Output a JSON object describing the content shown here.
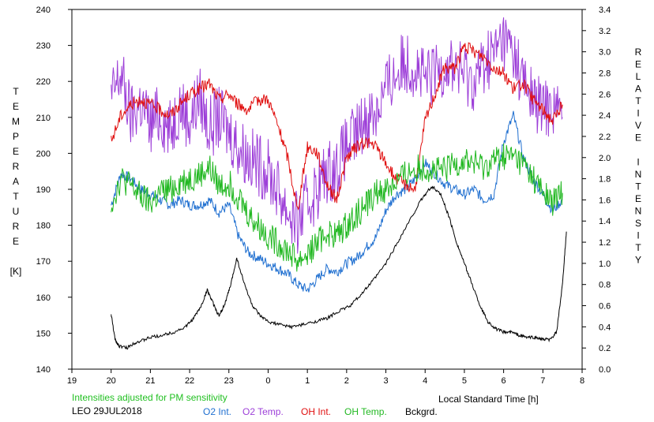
{
  "chart_data": {
    "type": "line",
    "title": "",
    "xlabel": "Local Standard Time [h]",
    "ylabel_left": "TEMPERATURE [K]",
    "ylabel_right": "RELATIVE INTENSITY",
    "ylabel_left_letters": [
      "T",
      "E",
      "M",
      "P",
      "E",
      "R",
      "A",
      "T",
      "U",
      "R",
      "E",
      "",
      "[K]"
    ],
    "ylabel_right_letters": [
      "R",
      "E",
      "L",
      "A",
      "T",
      "I",
      "V",
      "E",
      "",
      "I",
      "N",
      "T",
      "E",
      "N",
      "S",
      "I",
      "T",
      "Y"
    ],
    "x_ticks": [
      "19",
      "20",
      "21",
      "22",
      "23",
      "0",
      "1",
      "2",
      "3",
      "4",
      "5",
      "6",
      "7",
      "8"
    ],
    "xlim": [
      19,
      32
    ],
    "ylim_left": [
      140,
      240
    ],
    "ylim_right": [
      0.0,
      3.4
    ],
    "y_left_ticks": [
      140,
      150,
      160,
      170,
      180,
      190,
      200,
      210,
      220,
      230,
      240
    ],
    "y_right_ticks": [
      "0.0",
      "0.2",
      "0.4",
      "0.6",
      "0.8",
      "1.0",
      "1.2",
      "1.4",
      "1.6",
      "1.8",
      "2.0",
      "2.2",
      "2.4",
      "2.6",
      "2.8",
      "3.0",
      "3.2",
      "3.4"
    ],
    "grid": false,
    "legend_position": "bottom",
    "series": [
      {
        "name": "O2 Int.",
        "axis": "right",
        "color": "#1f6fd0",
        "x": [
          20.0,
          20.25,
          20.5,
          20.75,
          21.0,
          21.25,
          21.5,
          21.75,
          22.0,
          22.25,
          22.5,
          22.75,
          23.0,
          23.25,
          23.5,
          23.75,
          24.0,
          24.25,
          24.5,
          24.75,
          25.0,
          25.25,
          25.5,
          25.75,
          26.0,
          26.25,
          26.5,
          26.75,
          27.0,
          27.25,
          27.5,
          27.75,
          28.0,
          28.25,
          28.5,
          28.75,
          29.0,
          29.25,
          29.5,
          29.75,
          30.0,
          30.25,
          30.5,
          30.75,
          31.0,
          31.25,
          31.5
        ],
        "y": [
          1.55,
          1.85,
          1.8,
          1.7,
          1.65,
          1.6,
          1.55,
          1.6,
          1.55,
          1.55,
          1.6,
          1.48,
          1.55,
          1.25,
          1.1,
          1.05,
          1.0,
          0.95,
          0.9,
          0.8,
          0.75,
          0.85,
          0.95,
          0.92,
          1.0,
          1.05,
          1.15,
          1.25,
          1.5,
          1.65,
          1.7,
          1.8,
          1.95,
          1.85,
          1.75,
          1.7,
          1.65,
          1.7,
          1.6,
          1.65,
          2.15,
          2.4,
          2.0,
          1.8,
          1.65,
          1.5,
          1.6
        ]
      },
      {
        "name": "O2 Temp.",
        "axis": "left",
        "color": "#9d3fd8",
        "x": [
          20.0,
          20.25,
          20.5,
          20.75,
          21.0,
          21.25,
          21.5,
          21.75,
          22.0,
          22.25,
          22.5,
          22.75,
          23.0,
          23.25,
          23.5,
          23.75,
          24.0,
          24.25,
          24.5,
          24.75,
          25.0,
          25.25,
          25.5,
          25.75,
          26.0,
          26.25,
          26.5,
          26.75,
          27.0,
          27.25,
          27.5,
          27.75,
          28.0,
          28.25,
          28.5,
          28.75,
          29.0,
          29.25,
          29.5,
          29.75,
          30.0,
          30.25,
          30.5,
          30.75,
          31.0,
          31.25,
          31.5
        ],
        "y": [
          215,
          222,
          210,
          214,
          208,
          211,
          206,
          214,
          209,
          216,
          207,
          210,
          206,
          202,
          199,
          197,
          195,
          190,
          184,
          180,
          186,
          190,
          195,
          196,
          202,
          205,
          210,
          212,
          218,
          222,
          226,
          224,
          220,
          222,
          225,
          224,
          222,
          220,
          225,
          228,
          232,
          228,
          220,
          215,
          212,
          214,
          210
        ]
      },
      {
        "name": "OH Int.",
        "axis": "right",
        "color": "#e01010",
        "x": [
          20.0,
          20.25,
          20.5,
          20.75,
          21.0,
          21.25,
          21.5,
          21.75,
          22.0,
          22.25,
          22.5,
          22.75,
          23.0,
          23.25,
          23.5,
          23.75,
          24.0,
          24.25,
          24.5,
          24.75,
          25.0,
          25.25,
          25.5,
          25.75,
          26.0,
          26.25,
          26.5,
          26.75,
          27.0,
          27.25,
          27.5,
          27.75,
          28.0,
          28.25,
          28.5,
          28.75,
          29.0,
          29.25,
          29.5,
          29.75,
          30.0,
          30.25,
          30.5,
          30.75,
          31.0,
          31.25,
          31.5
        ],
        "y": [
          2.15,
          2.4,
          2.5,
          2.55,
          2.5,
          2.45,
          2.4,
          2.5,
          2.6,
          2.65,
          2.7,
          2.55,
          2.6,
          2.5,
          2.45,
          2.55,
          2.55,
          2.3,
          2.0,
          1.5,
          2.1,
          2.05,
          1.75,
          1.6,
          2.0,
          2.1,
          2.15,
          2.1,
          1.95,
          1.8,
          1.75,
          1.7,
          2.35,
          2.6,
          2.85,
          2.85,
          3.05,
          3.0,
          2.95,
          2.85,
          2.8,
          2.65,
          2.7,
          2.55,
          2.45,
          2.35,
          2.5
        ]
      },
      {
        "name": "OH Temp.",
        "axis": "left",
        "color": "#22b822",
        "x": [
          20.0,
          20.25,
          20.5,
          20.75,
          21.0,
          21.25,
          21.5,
          21.75,
          22.0,
          22.25,
          22.5,
          22.75,
          23.0,
          23.25,
          23.5,
          23.75,
          24.0,
          24.25,
          24.5,
          24.75,
          25.0,
          25.25,
          25.5,
          25.75,
          26.0,
          26.25,
          26.5,
          26.75,
          27.0,
          27.25,
          27.5,
          27.75,
          28.0,
          28.25,
          28.5,
          28.75,
          29.0,
          29.25,
          29.5,
          29.75,
          30.0,
          30.25,
          30.5,
          30.75,
          31.0,
          31.25,
          31.5
        ],
        "y": [
          186,
          193,
          191,
          188,
          186,
          189,
          190,
          192,
          193,
          194,
          196,
          191,
          192,
          188,
          183,
          180,
          177,
          175,
          173,
          170,
          172,
          175,
          178,
          177,
          180,
          183,
          186,
          189,
          190,
          192,
          194,
          196,
          196,
          195,
          195,
          197,
          198,
          197,
          196,
          198,
          199,
          199,
          197,
          193,
          189,
          186,
          189
        ]
      },
      {
        "name": "Bckgrd.",
        "axis": "right",
        "color": "#000000",
        "x": [
          20.0,
          20.1,
          20.2,
          20.4,
          20.6,
          20.8,
          21.0,
          21.3,
          21.6,
          21.9,
          22.1,
          22.3,
          22.45,
          22.6,
          22.75,
          22.9,
          23.05,
          23.2,
          23.4,
          23.6,
          23.8,
          24.0,
          24.3,
          24.6,
          24.9,
          25.2,
          25.5,
          25.8,
          26.1,
          26.4,
          26.7,
          27.0,
          27.3,
          27.6,
          27.9,
          28.1,
          28.2,
          28.4,
          28.6,
          28.8,
          29.0,
          29.2,
          29.4,
          29.6,
          29.8,
          30.0,
          30.2,
          30.4,
          30.6,
          30.8,
          31.0,
          31.2,
          31.35,
          31.5,
          31.6
        ],
        "y": [
          0.52,
          0.28,
          0.22,
          0.2,
          0.25,
          0.27,
          0.3,
          0.32,
          0.35,
          0.4,
          0.48,
          0.6,
          0.75,
          0.62,
          0.5,
          0.62,
          0.8,
          1.05,
          0.8,
          0.6,
          0.5,
          0.45,
          0.42,
          0.4,
          0.42,
          0.45,
          0.48,
          0.55,
          0.6,
          0.72,
          0.85,
          1.0,
          1.2,
          1.4,
          1.6,
          1.7,
          1.72,
          1.65,
          1.45,
          1.2,
          1.0,
          0.8,
          0.6,
          0.45,
          0.38,
          0.35,
          0.35,
          0.32,
          0.3,
          0.3,
          0.28,
          0.28,
          0.35,
          0.8,
          1.3
        ]
      }
    ]
  },
  "notes": {
    "pm_note": "Intensities adjusted for PM sensitivity",
    "station_date": "LEO 29JUL2018"
  },
  "colors": {
    "pm_note": "#22c022"
  }
}
